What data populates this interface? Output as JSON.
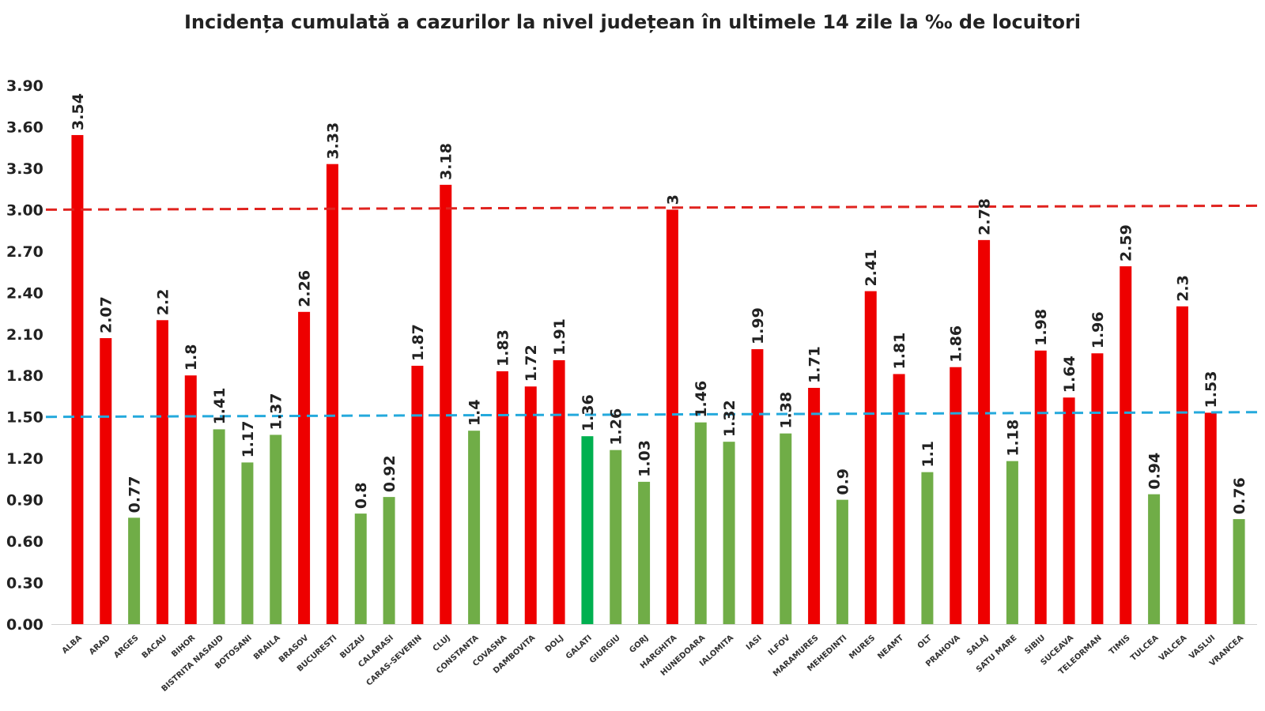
{
  "chart_data": {
    "type": "bar",
    "title": "Incidența cumulată a cazurilor la nivel județean în ultimele 14 zile la ‰ de locuitori",
    "xlabel": "",
    "ylabel": "",
    "ylim": [
      0,
      3.9
    ],
    "yticks": [
      "0.00",
      "0.30",
      "0.60",
      "0.90",
      "1.20",
      "1.50",
      "1.80",
      "2.10",
      "2.40",
      "2.70",
      "3.00",
      "3.30",
      "3.60",
      "3.90"
    ],
    "grid": false,
    "legend": "none",
    "colors": {
      "above": "#ee0000",
      "below": "#70ad47",
      "highlight": "#00b050",
      "threshold_high": "#e0231f",
      "threshold_low": "#24a9dc"
    },
    "thresholds": [
      {
        "value": 3.0,
        "color": "#e0231f"
      },
      {
        "value": 1.5,
        "color": "#24a9dc"
      }
    ],
    "categories": [
      "ALBA",
      "ARAD",
      "ARGES",
      "BACAU",
      "BIHOR",
      "BISTRITA NASAUD",
      "BOTOSANI",
      "BRAILA",
      "BRASOV",
      "BUCURESTI",
      "BUZAU",
      "CALARASI",
      "CARAS-SEVERIN",
      "CLUJ",
      "CONSTANTA",
      "COVASNA",
      "DAMBOVITA",
      "DOLJ",
      "GALATI",
      "GIURGIU",
      "GORJ",
      "HARGHITA",
      "HUNEDOARA",
      "IALOMITA",
      "IASI",
      "ILFOV",
      "MARAMURES",
      "MEHEDINTI",
      "MURES",
      "NEAMT",
      "OLT",
      "PRAHOVA",
      "SALAJ",
      "SATU MARE",
      "SIBIU",
      "SUCEAVA",
      "TELEORMAN",
      "TIMIS",
      "TULCEA",
      "VALCEA",
      "VASLUI",
      "VRANCEA"
    ],
    "values": [
      3.54,
      2.07,
      0.77,
      2.2,
      1.8,
      1.41,
      1.17,
      1.37,
      2.26,
      3.33,
      0.8,
      0.92,
      1.87,
      3.18,
      1.4,
      1.83,
      1.72,
      1.91,
      1.36,
      1.26,
      1.03,
      3,
      1.46,
      1.32,
      1.99,
      1.38,
      1.71,
      0.9,
      2.41,
      1.81,
      1.1,
      1.86,
      2.78,
      1.18,
      1.98,
      1.64,
      1.96,
      2.59,
      0.94,
      2.3,
      1.53,
      0.76
    ],
    "data_labels": [
      "3.54",
      "2.07",
      "0.77",
      "2.2",
      "1.8",
      "1.41",
      "1.17",
      "1.37",
      "2.26",
      "3.33",
      "0.8",
      "0.92",
      "1.87",
      "3.18",
      "1.4",
      "1.83",
      "1.72",
      "1.91",
      "1.36",
      "1.26",
      "1.03",
      "3",
      "1.46",
      "1.32",
      "1.99",
      "1.38",
      "1.71",
      "0.9",
      "2.41",
      "1.81",
      "1.1",
      "1.86",
      "2.78",
      "1.18",
      "1.98",
      "1.64",
      "1.96",
      "2.59",
      "0.94",
      "2.3",
      "1.53",
      "0.76"
    ],
    "bar_colors": [
      "above",
      "above",
      "below",
      "above",
      "above",
      "below",
      "below",
      "below",
      "above",
      "above",
      "below",
      "below",
      "above",
      "above",
      "below",
      "above",
      "above",
      "above",
      "highlight",
      "below",
      "below",
      "above",
      "below",
      "below",
      "above",
      "below",
      "above",
      "below",
      "above",
      "above",
      "below",
      "above",
      "above",
      "below",
      "above",
      "above",
      "above",
      "above",
      "below",
      "above",
      "above",
      "below"
    ]
  }
}
